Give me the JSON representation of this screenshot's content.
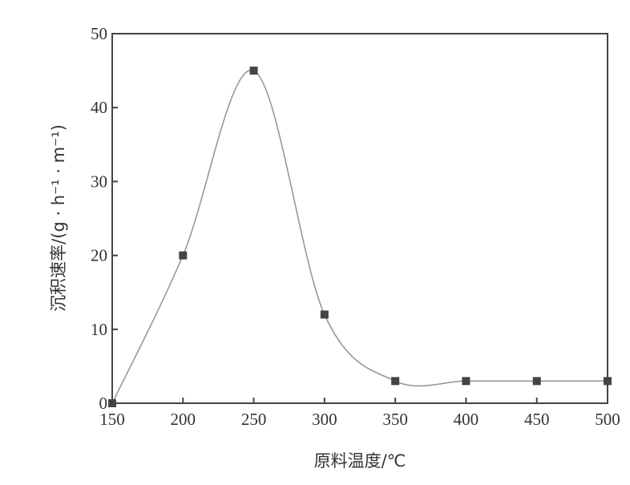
{
  "chart_data": {
    "type": "scatter",
    "xlabel": "原料温度/℃",
    "ylabel": "沉积速率/(g · h⁻¹ · m⁻¹)",
    "xlim": [
      150,
      500
    ],
    "ylim": [
      0,
      50
    ],
    "xticks": [
      150,
      200,
      250,
      300,
      350,
      400,
      450,
      500
    ],
    "yticks": [
      0,
      10,
      20,
      30,
      40,
      50
    ],
    "grid": false,
    "smooth_curve": true,
    "marker": "square",
    "colors": {
      "marker": "#444444",
      "curve": "#999999",
      "axis": "#444444"
    },
    "x": [
      150,
      200,
      250,
      300,
      350,
      400,
      450,
      500
    ],
    "y": [
      0,
      20,
      45,
      12,
      3,
      3,
      3,
      3
    ]
  }
}
